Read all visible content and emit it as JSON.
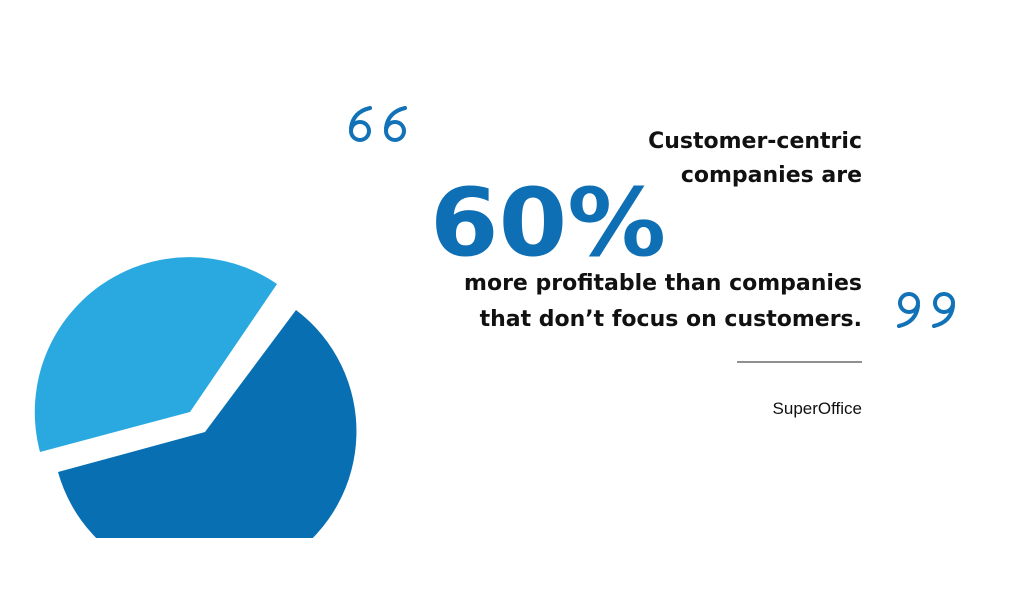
{
  "quote": {
    "line1": "Customer-centric",
    "line2": "companies are",
    "stat": "60%",
    "line3": "more profitable than companies",
    "line4": "that don’t focus on customers.",
    "source": "SuperOffice"
  }
}
